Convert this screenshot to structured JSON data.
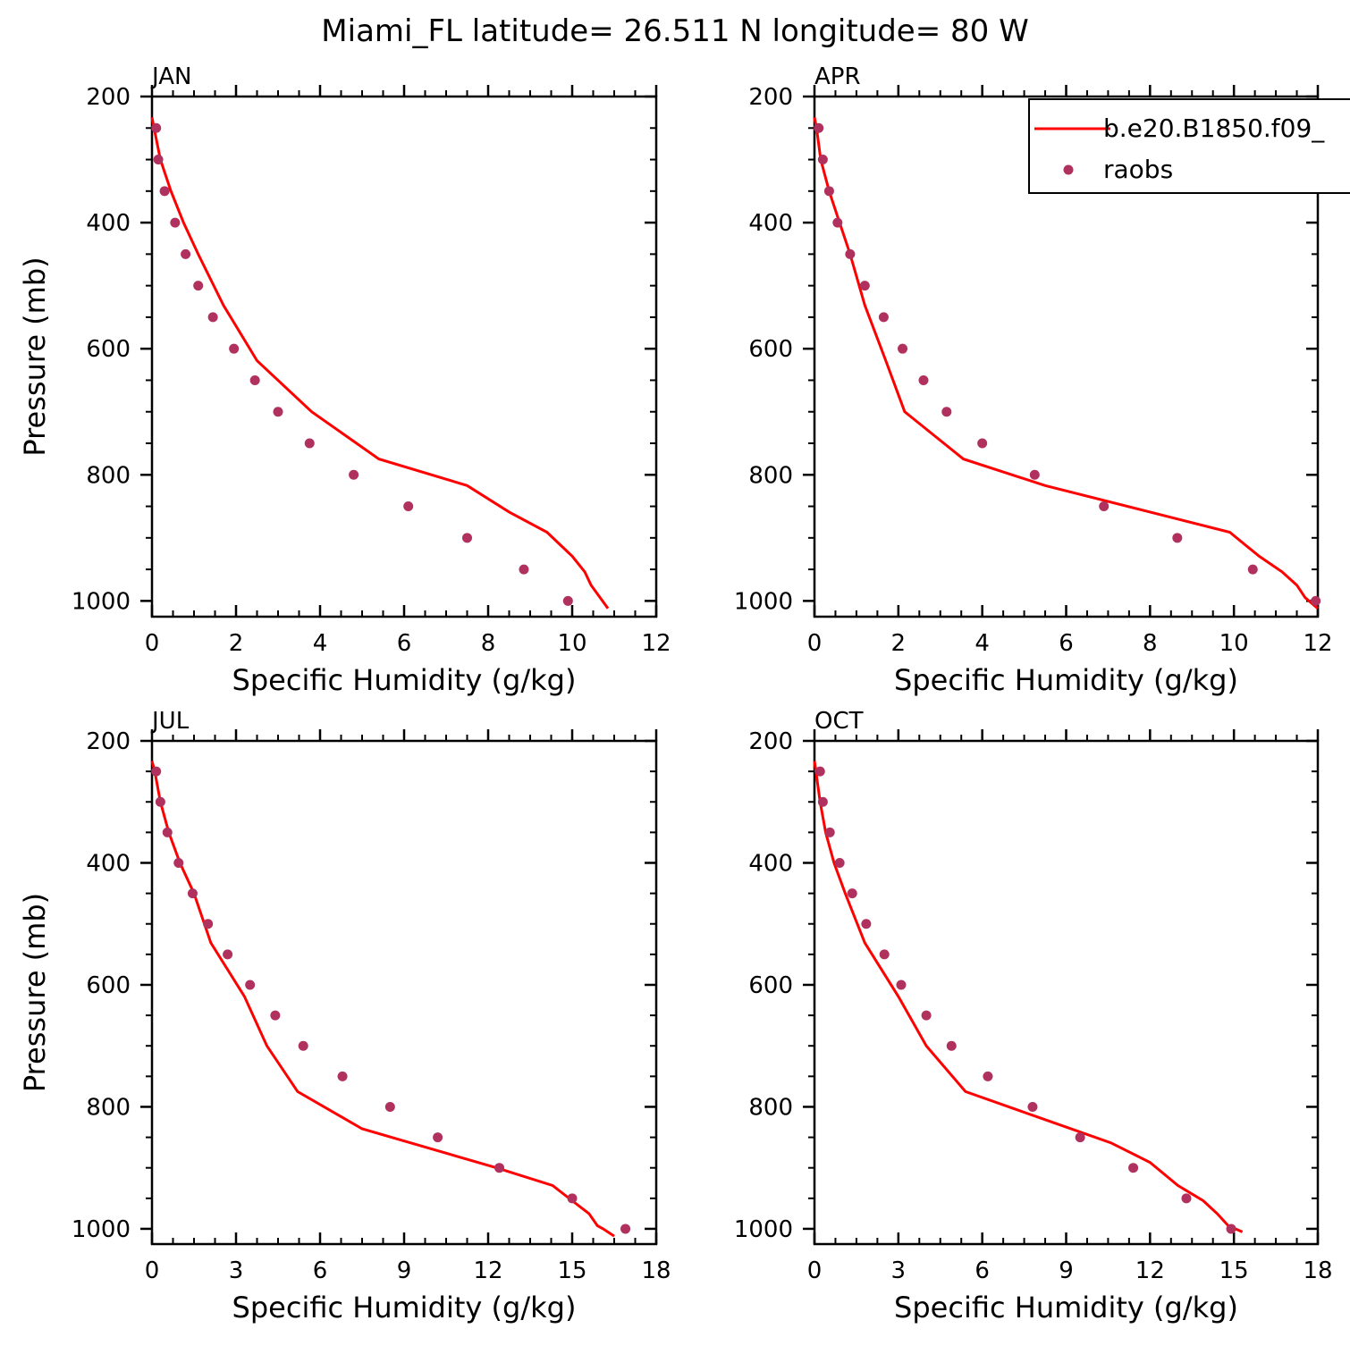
{
  "title": "Miami_FL  latitude= 26.511 N longitude= 80 W",
  "colors": {
    "model_line": "#ff0000",
    "raobs_marker": "#b0305e",
    "axes": "#000000"
  },
  "legend": {
    "placement": "top-right of APR panel",
    "entries": [
      {
        "label": "b.e20.B1850.f09_",
        "style": "line"
      },
      {
        "label": "raobs",
        "style": "marker"
      }
    ]
  },
  "chart_data": [
    {
      "type": "line+scatter",
      "panel_label": "JAN",
      "xlabel": "Specific Humidity (g/kg)",
      "ylabel": "Pressure (mb)",
      "xlim": [
        0,
        12
      ],
      "ylim": [
        1025,
        200
      ],
      "xticks": [
        0,
        2,
        4,
        6,
        8,
        10,
        12
      ],
      "yticks": [
        200,
        400,
        600,
        800,
        1000
      ],
      "model": {
        "x": [
          0.0,
          0.05,
          0.2,
          0.45,
          0.75,
          1.1,
          1.7,
          2.5,
          3.8,
          5.4,
          7.5,
          8.5,
          9.4,
          10.0,
          10.3,
          10.45,
          10.85
        ],
        "y": [
          233,
          250,
          300,
          350,
          400,
          450,
          531,
          619,
          700,
          775,
          817,
          859,
          891,
          929,
          954,
          975,
          1012
        ]
      },
      "raobs": {
        "x": [
          0.1,
          0.15,
          0.3,
          0.55,
          0.8,
          1.1,
          1.45,
          1.95,
          2.45,
          3.0,
          3.75,
          4.8,
          6.1,
          7.5,
          8.85,
          9.9
        ],
        "y": [
          250,
          300,
          350,
          400,
          450,
          500,
          550,
          600,
          650,
          700,
          750,
          800,
          850,
          900,
          950,
          1000
        ]
      }
    },
    {
      "type": "line+scatter",
      "panel_label": "APR",
      "xlabel": "Specific Humidity (g/kg)",
      "ylabel": "",
      "xlim": [
        0,
        12
      ],
      "ylim": [
        1025,
        200
      ],
      "xticks": [
        0,
        2,
        4,
        6,
        8,
        10,
        12
      ],
      "yticks": [
        200,
        400,
        600,
        800,
        1000
      ],
      "model": {
        "x": [
          0.0,
          0.05,
          0.15,
          0.35,
          0.6,
          0.85,
          1.2,
          1.7,
          2.15,
          3.55,
          5.5,
          8.0,
          9.9,
          10.6,
          11.15,
          11.5,
          11.7,
          12.0
        ],
        "y": [
          233,
          250,
          300,
          350,
          400,
          450,
          531,
          619,
          700,
          775,
          817,
          859,
          891,
          929,
          954,
          975,
          995,
          1012
        ]
      },
      "raobs": {
        "x": [
          0.1,
          0.2,
          0.35,
          0.55,
          0.85,
          1.2,
          1.65,
          2.1,
          2.6,
          3.15,
          4.0,
          5.25,
          6.9,
          8.65,
          10.45,
          11.95
        ],
        "y": [
          250,
          300,
          350,
          400,
          450,
          500,
          550,
          600,
          650,
          700,
          750,
          800,
          850,
          900,
          950,
          1000
        ]
      }
    },
    {
      "type": "line+scatter",
      "panel_label": "JUL",
      "xlabel": "Specific Humidity (g/kg)",
      "ylabel": "Pressure (mb)",
      "xlim": [
        0,
        18
      ],
      "ylim": [
        1025,
        200
      ],
      "xticks": [
        0,
        3,
        6,
        9,
        12,
        15,
        18
      ],
      "yticks": [
        200,
        400,
        600,
        800,
        1000
      ],
      "model": {
        "x": [
          0.0,
          0.1,
          0.3,
          0.6,
          1.0,
          1.5,
          2.1,
          3.3,
          4.1,
          5.2,
          7.5,
          12.3,
          14.3,
          15.0,
          15.6,
          15.9,
          16.1,
          16.5
        ],
        "y": [
          233,
          250,
          300,
          350,
          400,
          450,
          531,
          619,
          700,
          775,
          836,
          900,
          929,
          954,
          975,
          995,
          1000,
          1012
        ]
      },
      "raobs": {
        "x": [
          0.15,
          0.3,
          0.55,
          0.95,
          1.45,
          2.0,
          2.7,
          3.5,
          4.4,
          5.4,
          6.8,
          8.5,
          10.2,
          12.4,
          15.0,
          16.9
        ],
        "y": [
          250,
          300,
          350,
          400,
          450,
          500,
          550,
          600,
          650,
          700,
          750,
          800,
          850,
          900,
          950,
          1000
        ]
      }
    },
    {
      "type": "line+scatter",
      "panel_label": "OCT",
      "xlabel": "Specific Humidity (g/kg)",
      "ylabel": "",
      "xlim": [
        0,
        18
      ],
      "ylim": [
        1025,
        200
      ],
      "xticks": [
        0,
        3,
        6,
        9,
        12,
        15,
        18
      ],
      "yticks": [
        200,
        400,
        600,
        800,
        1000
      ],
      "model": {
        "x": [
          0.0,
          0.05,
          0.2,
          0.4,
          0.7,
          1.1,
          1.8,
          3.0,
          4.0,
          5.4,
          8.0,
          10.6,
          12.0,
          13.0,
          13.9,
          14.4,
          14.8,
          15.3
        ],
        "y": [
          233,
          250,
          300,
          350,
          400,
          450,
          531,
          619,
          700,
          775,
          817,
          859,
          891,
          929,
          954,
          975,
          995,
          1005
        ]
      },
      "raobs": {
        "x": [
          0.2,
          0.3,
          0.55,
          0.9,
          1.35,
          1.85,
          2.5,
          3.1,
          4.0,
          4.9,
          6.2,
          7.8,
          9.5,
          11.4,
          13.3,
          14.9
        ],
        "y": [
          250,
          300,
          350,
          400,
          450,
          500,
          550,
          600,
          650,
          700,
          750,
          800,
          850,
          900,
          950,
          1000
        ]
      }
    }
  ]
}
